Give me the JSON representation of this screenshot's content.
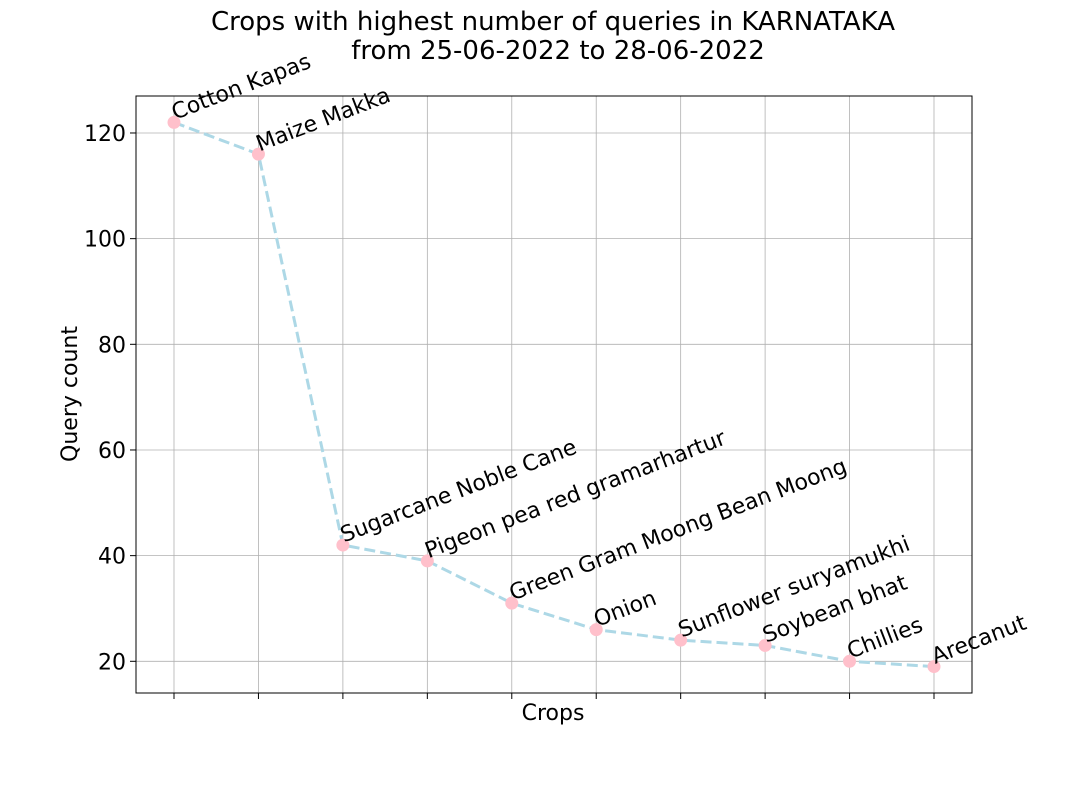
{
  "chart_data": {
    "type": "line",
    "title": [
      "Crops with highest number of queries in KARNATAKA",
      "from 25-06-2022 to 28-06-2022"
    ],
    "xlabel": "Crops",
    "ylabel": "Query count",
    "categories": [
      "Cotton Kapas",
      "Maize Makka",
      "Sugarcane Noble Cane",
      "Pigeon pea red gramarhartur",
      "Green Gram Moong Bean Moong",
      "Onion",
      "Sunflower suryamukhi",
      "Soybean bhat",
      "Chillies",
      "Arecanut"
    ],
    "values": [
      122,
      116,
      42,
      39,
      31,
      26,
      24,
      23,
      20,
      19
    ],
    "ylim": [
      14,
      127
    ],
    "yticks": [
      20,
      40,
      60,
      80,
      100,
      120
    ],
    "grid": true,
    "line_color": "#add8e6",
    "marker_color": "#ffc0cb",
    "line_style": "dashed"
  }
}
